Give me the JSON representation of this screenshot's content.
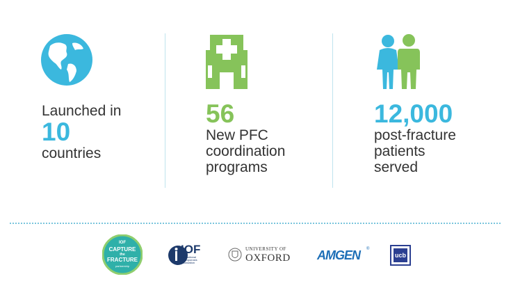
{
  "stats": [
    {
      "lines_before": [
        "Launched in"
      ],
      "number": "10",
      "lines_after": [
        "countries"
      ],
      "icon": "globe-icon",
      "color": "#3bb8de"
    },
    {
      "lines_before": [],
      "number": "56",
      "lines_after": [
        "New PFC",
        "coordination",
        "programs"
      ],
      "icon": "hospital-icon",
      "color": "#86c35a"
    },
    {
      "lines_before": [],
      "number": "12,000",
      "lines_after": [
        "post-fracture",
        "patients",
        "served"
      ],
      "icon": "patients-icon",
      "color": "#3bb8de"
    }
  ],
  "logos": {
    "ctf": {
      "top": "IOF",
      "line1": "CAPTURE",
      "the": "the",
      "line2": "FRACTURE",
      "sub": "partnership"
    },
    "iof": {
      "abbr": "IOF",
      "sub1": "International",
      "sub2": "Osteoporosis",
      "sub3": "Foundation"
    },
    "oxford": {
      "top": "UNIVERSITY OF",
      "name": "OXFORD"
    },
    "amgen": {
      "name": "AMGEN"
    },
    "ucb": {
      "name": "ucb"
    }
  },
  "colors": {
    "blue": "#3bb8de",
    "green": "#86c35a",
    "text": "#333333",
    "divider": "#bfe4ee"
  }
}
